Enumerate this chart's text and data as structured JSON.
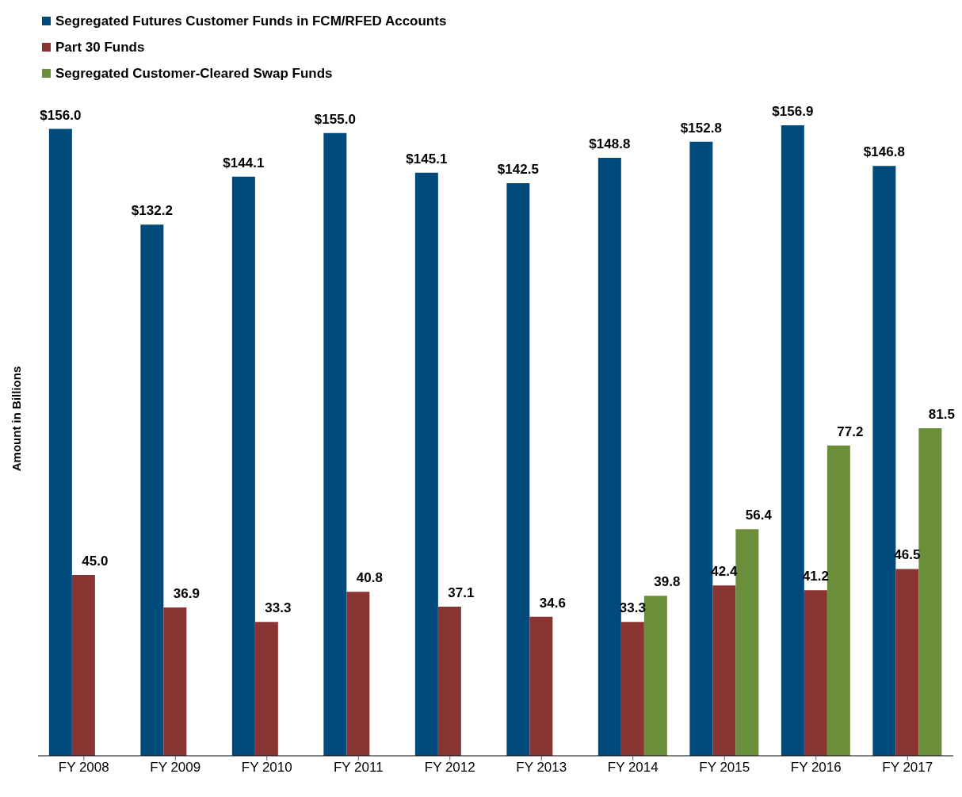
{
  "chart_data": {
    "type": "bar",
    "ylabel": "Amount in Billions",
    "categories": [
      "FY 2008",
      "FY 2009",
      "FY 2010",
      "FY 2011",
      "FY 2012",
      "FY 2013",
      "FY 2014",
      "FY 2015",
      "FY 2016",
      "FY 2017"
    ],
    "series": [
      {
        "name": "Segregated Futures Customer Funds in FCM/RFED Accounts",
        "color": "#004a7c",
        "values": [
          156.0,
          132.2,
          144.1,
          155.0,
          145.1,
          142.5,
          148.8,
          152.8,
          156.9,
          146.8
        ],
        "value_labels": [
          "$156.0",
          "$132.2",
          "$144.1",
          "$155.0",
          "$145.1",
          "$142.5",
          "$148.8",
          "$152.8",
          "$156.9",
          "$146.8"
        ]
      },
      {
        "name": "Part 30 Funds",
        "color": "#8a3333",
        "values": [
          45.0,
          36.9,
          33.3,
          40.8,
          37.1,
          34.6,
          33.3,
          42.4,
          41.2,
          46.5
        ],
        "value_labels": [
          "45.0",
          "36.9",
          "33.3",
          "40.8",
          "37.1",
          "34.6",
          "33.3",
          "42.4",
          "41.2",
          "46.5"
        ]
      },
      {
        "name": "Segregated Customer-Cleared Swap Funds",
        "color": "#6b8e3a",
        "values": [
          null,
          null,
          null,
          null,
          null,
          null,
          39.8,
          56.4,
          77.2,
          81.5
        ],
        "value_labels": [
          null,
          null,
          null,
          null,
          null,
          null,
          "39.8",
          "56.4",
          "77.2",
          "81.5"
        ]
      }
    ],
    "tick_labels": "x",
    "legend": "top left"
  }
}
